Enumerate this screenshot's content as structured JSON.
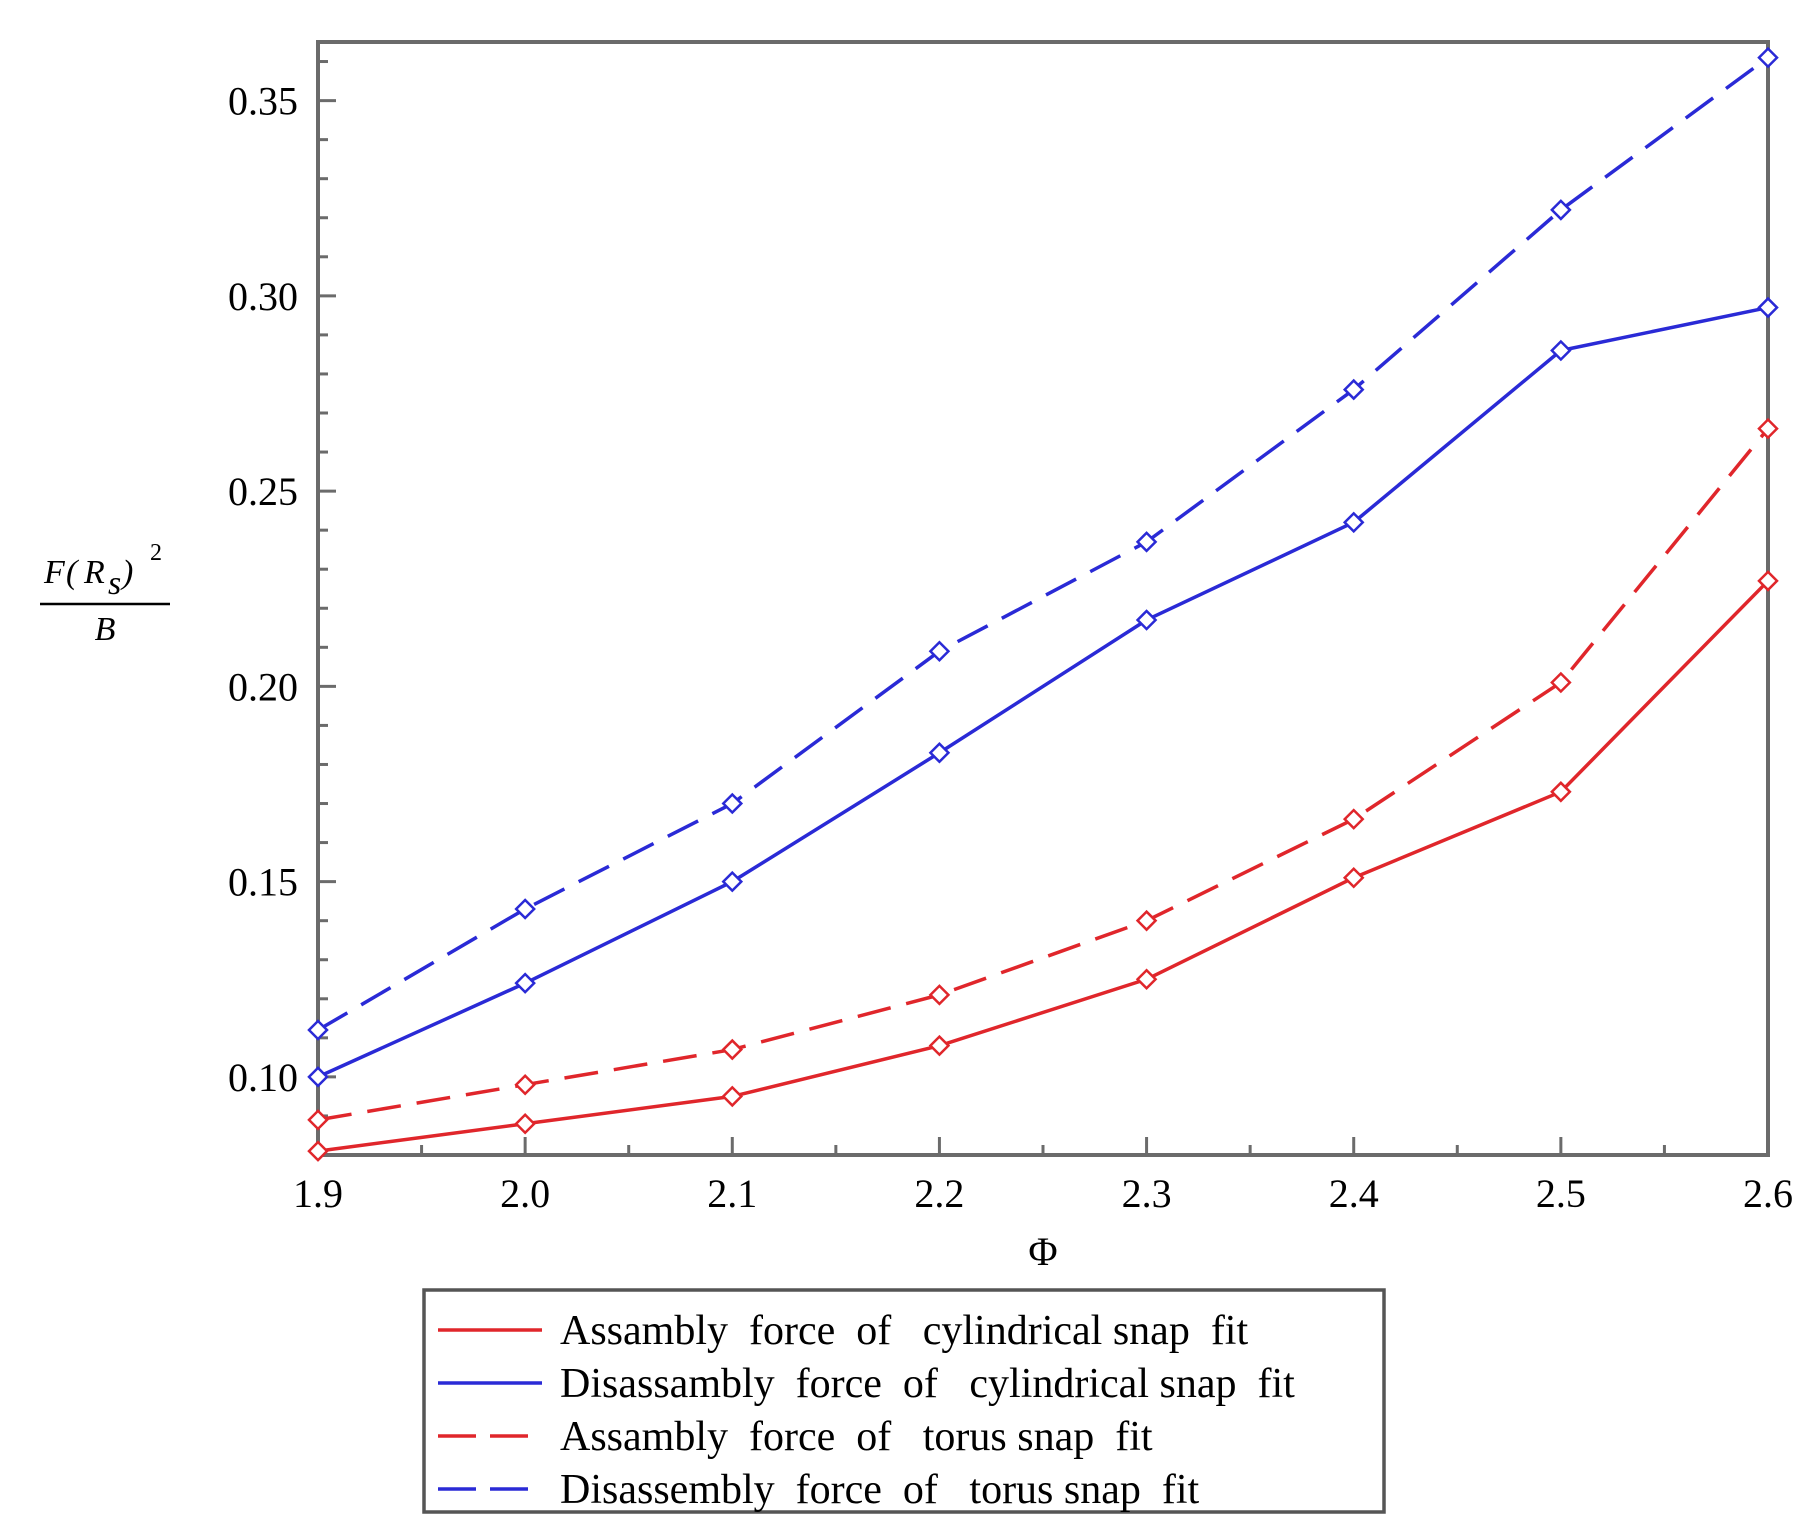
{
  "chart_data": {
    "type": "line",
    "x": [
      1.9,
      2.0,
      2.1,
      2.2,
      2.3,
      2.4,
      2.5,
      2.6
    ],
    "xlabel": "Φ",
    "ylabel": {
      "numerator_f": "F",
      "numerator_r": "R",
      "subscript": "s",
      "exponent": "2",
      "denominator": "B"
    },
    "xlim": [
      1.9,
      2.6
    ],
    "ylim": [
      0.08,
      0.365
    ],
    "xticks": [
      "1.9",
      "2.0",
      "2.1",
      "2.2",
      "2.3",
      "2.4",
      "2.5",
      "2.6"
    ],
    "yticks": [
      {
        "value": 0.1,
        "label": "0.10"
      },
      {
        "value": 0.15,
        "label": "0.15"
      },
      {
        "value": 0.2,
        "label": "0.20"
      },
      {
        "value": 0.25,
        "label": "0.25"
      },
      {
        "value": 0.3,
        "label": "0.30"
      },
      {
        "value": 0.35,
        "label": "0.35"
      }
    ],
    "series": [
      {
        "name": "Assambly force of cylindrical snap fit",
        "legend_text": "Assambly  force  of   cylindrical snap  fit",
        "color": "#e0262b",
        "style": "solid",
        "marker": "diamond",
        "values": [
          0.081,
          0.088,
          0.095,
          0.108,
          0.125,
          0.151,
          0.173,
          0.227
        ]
      },
      {
        "name": "Disassambly force of cylindrical snap fit",
        "legend_text": "Disassambly  force  of   cylindrical snap  fit",
        "color": "#2a2ad6",
        "style": "solid",
        "marker": "diamond",
        "values": [
          0.1,
          0.124,
          0.15,
          0.183,
          0.217,
          0.242,
          0.286,
          0.297
        ]
      },
      {
        "name": "Assambly force of torus snap fit",
        "legend_text": "Assambly  force  of   torus snap  fit",
        "color": "#e0262b",
        "style": "dashed",
        "marker": "diamond",
        "values": [
          0.089,
          0.098,
          0.107,
          0.121,
          0.14,
          0.166,
          0.201,
          0.266
        ]
      },
      {
        "name": "Disassembly force of torus snap fit",
        "legend_text": "Disassembly  force  of   torus snap  fit",
        "color": "#2a2ad6",
        "style": "dashed",
        "marker": "diamond",
        "values": [
          0.112,
          0.143,
          0.17,
          0.209,
          0.237,
          0.276,
          0.322,
          0.361
        ]
      }
    ],
    "legend_position": "bottom-center",
    "grid": false
  }
}
